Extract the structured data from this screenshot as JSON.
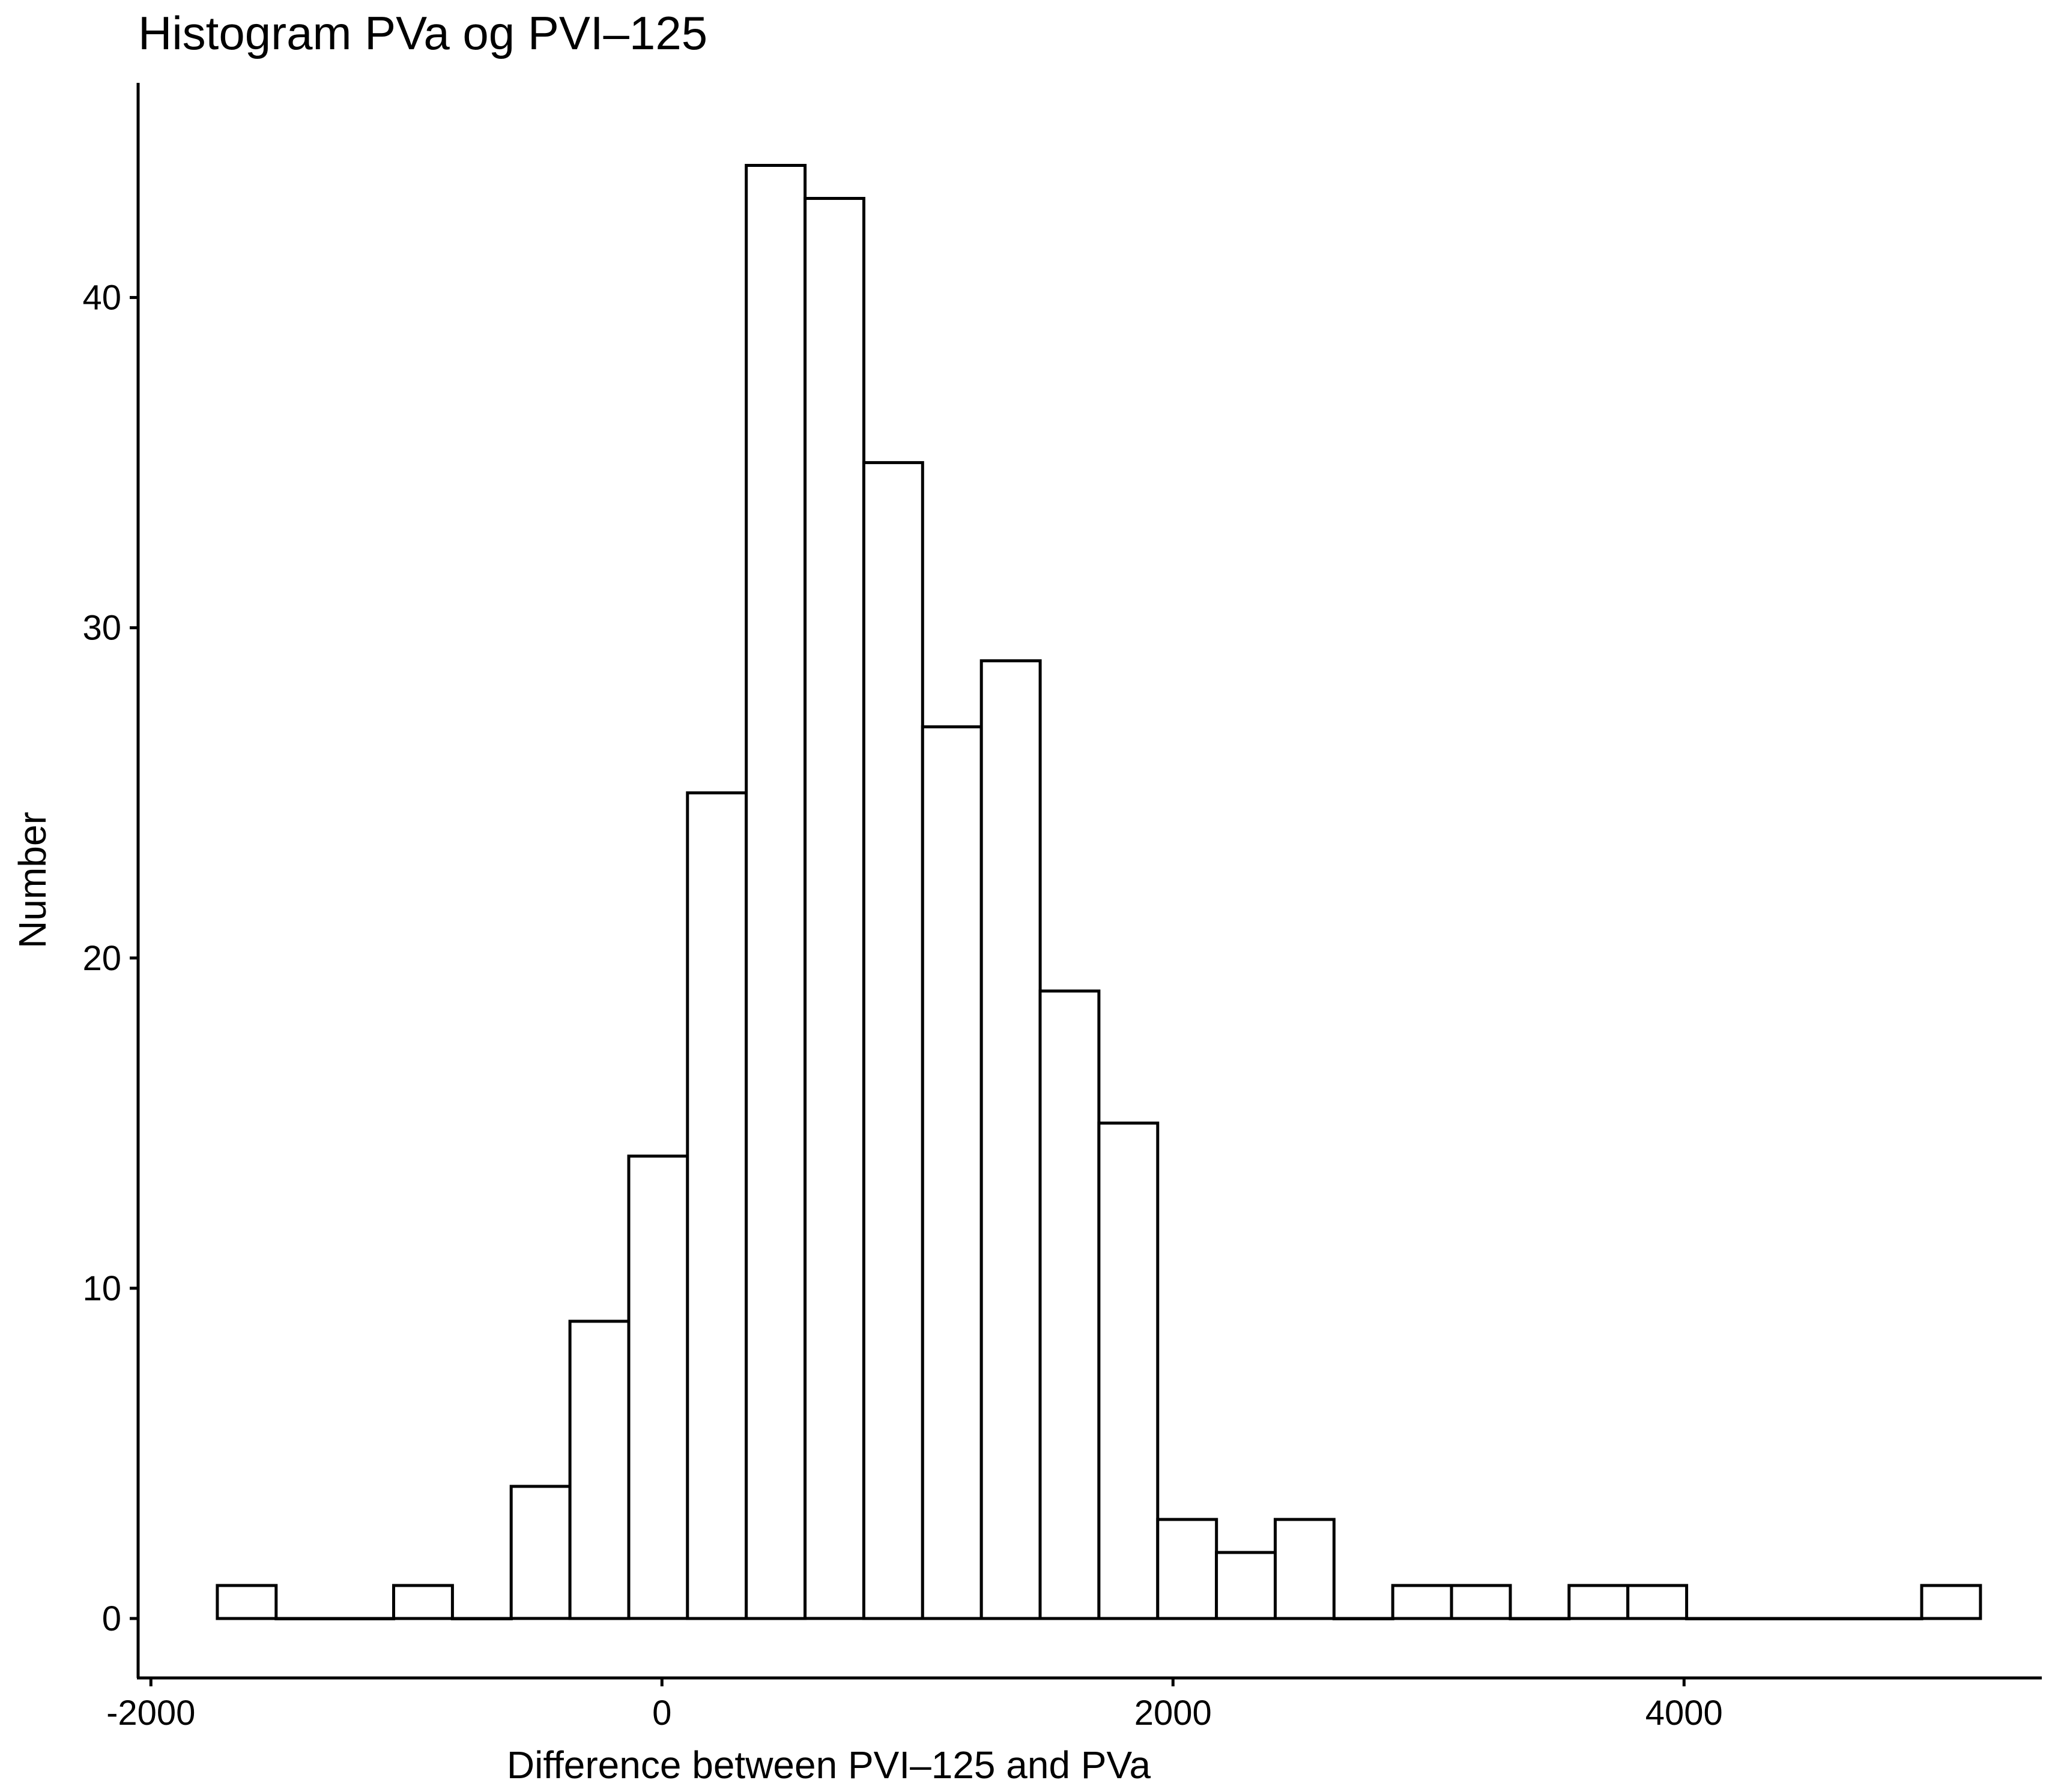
{
  "chart_data": {
    "type": "bar",
    "title": "Histogram PVa og PVI–125",
    "xlabel": "Difference between PVI–125 and PVa",
    "ylabel": "Number",
    "bin_width": 230,
    "bins_start": [
      -1740,
      -1510,
      -1280,
      -1050,
      -820,
      -590,
      -360,
      -130,
      100,
      330,
      560,
      790,
      1020,
      1250,
      1480,
      1710,
      1940,
      2170,
      2400,
      2630,
      2860,
      3090,
      3320,
      3550,
      3780,
      4010,
      4240,
      4470,
      4700,
      4930
    ],
    "values": [
      1,
      0,
      0,
      1,
      0,
      4,
      9,
      14,
      25,
      44,
      43,
      35,
      27,
      29,
      19,
      15,
      3,
      2,
      3,
      0,
      1,
      1,
      0,
      1,
      1,
      0,
      0,
      0,
      0,
      1
    ],
    "xlim": [
      -2050,
      5400
    ],
    "ylim": [
      -1.8,
      46.5
    ],
    "xticks": [
      -2000,
      0,
      2000,
      4000
    ],
    "xtick_labels": [
      "-2000",
      "0",
      "2000",
      "4000"
    ],
    "yticks": [
      0,
      10,
      20,
      30,
      40
    ],
    "ytick_labels": [
      "0",
      "10",
      "20",
      "30",
      "40"
    ],
    "grid": false,
    "legend": "none",
    "bar_fill": "#ffffff",
    "bar_stroke": "#000000"
  }
}
